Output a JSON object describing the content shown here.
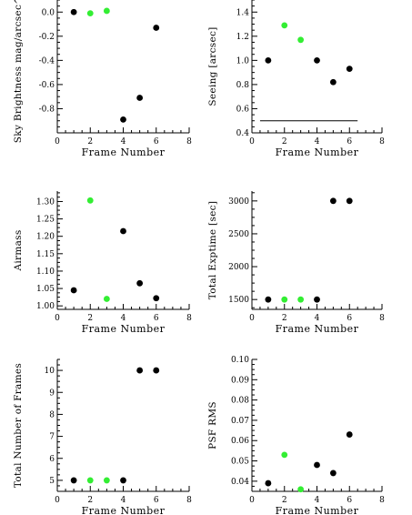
{
  "colors": {
    "black_point": "#000000",
    "green_point": "#33ee33",
    "axis": "#000000"
  },
  "chart_data": [
    {
      "type": "scatter",
      "title": "",
      "xlabel": "Frame Number",
      "ylabel": "Sky Brightness mag/arcsec^2",
      "xlim": [
        0,
        8
      ],
      "ylim": [
        -1.0,
        0.1
      ],
      "xticks": [
        "0",
        "2",
        "4",
        "6",
        "8"
      ],
      "yticks": [
        "0.0",
        "-0.2",
        "-0.4",
        "-0.6",
        "-0.8"
      ],
      "grid": false,
      "points": [
        {
          "x": 1,
          "y": 0.0,
          "color": "black"
        },
        {
          "x": 2,
          "y": -0.01,
          "color": "green"
        },
        {
          "x": 3,
          "y": 0.01,
          "color": "green"
        },
        {
          "x": 4,
          "y": -0.89,
          "color": "black"
        },
        {
          "x": 5,
          "y": -0.71,
          "color": "black"
        },
        {
          "x": 6,
          "y": -0.13,
          "color": "black"
        }
      ]
    },
    {
      "type": "scatter",
      "title": "",
      "xlabel": "Frame Number",
      "ylabel": "Seeing [arcsec]",
      "xlim": [
        0,
        8
      ],
      "ylim": [
        0.4,
        1.5
      ],
      "xticks": [
        "0",
        "2",
        "4",
        "6",
        "8"
      ],
      "yticks": [
        "0.4",
        "0.6",
        "0.8",
        "1.0",
        "1.2",
        "1.4"
      ],
      "grid": false,
      "reference_line": {
        "y": 0.5,
        "x_start": 0.5,
        "x_end": 6.5
      },
      "points": [
        {
          "x": 1,
          "y": 1.0,
          "color": "black"
        },
        {
          "x": 2,
          "y": 1.29,
          "color": "green"
        },
        {
          "x": 3,
          "y": 1.17,
          "color": "green"
        },
        {
          "x": 4,
          "y": 1.0,
          "color": "black"
        },
        {
          "x": 5,
          "y": 0.82,
          "color": "black"
        },
        {
          "x": 6,
          "y": 0.93,
          "color": "black"
        }
      ]
    },
    {
      "type": "scatter",
      "title": "",
      "xlabel": "Frame Number",
      "ylabel": "Airmass",
      "xlim": [
        0,
        8
      ],
      "ylim": [
        0.99,
        1.33
      ],
      "xticks": [
        "0",
        "2",
        "4",
        "6",
        "8"
      ],
      "yticks": [
        "1.00",
        "1.05",
        "1.10",
        "1.15",
        "1.20",
        "1.25",
        "1.30"
      ],
      "grid": false,
      "points": [
        {
          "x": 1,
          "y": 1.045,
          "color": "black"
        },
        {
          "x": 2,
          "y": 1.303,
          "color": "green"
        },
        {
          "x": 3,
          "y": 1.02,
          "color": "green"
        },
        {
          "x": 4,
          "y": 1.215,
          "color": "black"
        },
        {
          "x": 5,
          "y": 1.065,
          "color": "black"
        },
        {
          "x": 6,
          "y": 1.022,
          "color": "black"
        }
      ]
    },
    {
      "type": "scatter",
      "title": "",
      "xlabel": "Frame Number",
      "ylabel": "Total Exptime [sec]",
      "xlim": [
        0,
        8
      ],
      "ylim": [
        1350,
        3150
      ],
      "xticks": [
        "0",
        "2",
        "4",
        "6",
        "8"
      ],
      "yticks": [
        "1500",
        "2000",
        "2500",
        "3000"
      ],
      "grid": false,
      "points": [
        {
          "x": 1,
          "y": 1500,
          "color": "black"
        },
        {
          "x": 2,
          "y": 1500,
          "color": "green"
        },
        {
          "x": 3,
          "y": 1500,
          "color": "green"
        },
        {
          "x": 4,
          "y": 1500,
          "color": "black"
        },
        {
          "x": 5,
          "y": 3000,
          "color": "black"
        },
        {
          "x": 6,
          "y": 3000,
          "color": "black"
        }
      ]
    },
    {
      "type": "scatter",
      "title": "",
      "xlabel": "Frame Number",
      "ylabel": "Total Number of Frames",
      "xlim": [
        0,
        8
      ],
      "ylim": [
        4.5,
        10.5
      ],
      "xticks": [
        "0",
        "2",
        "4",
        "6",
        "8"
      ],
      "yticks": [
        "5",
        "6",
        "7",
        "8",
        "9",
        "10"
      ],
      "grid": false,
      "points": [
        {
          "x": 1,
          "y": 5,
          "color": "black"
        },
        {
          "x": 2,
          "y": 5,
          "color": "green"
        },
        {
          "x": 3,
          "y": 5,
          "color": "green"
        },
        {
          "x": 4,
          "y": 5,
          "color": "black"
        },
        {
          "x": 5,
          "y": 10,
          "color": "black"
        },
        {
          "x": 6,
          "y": 10,
          "color": "black"
        }
      ]
    },
    {
      "type": "scatter",
      "title": "",
      "xlabel": "Frame Number",
      "ylabel": "PSF RMS",
      "xlim": [
        0,
        8
      ],
      "ylim": [
        0.035,
        0.1
      ],
      "xticks": [
        "0",
        "2",
        "4",
        "6",
        "8"
      ],
      "yticks": [
        "0.04",
        "0.05",
        "0.06",
        "0.07",
        "0.08",
        "0.09",
        "0.10"
      ],
      "grid": false,
      "points": [
        {
          "x": 1,
          "y": 0.039,
          "color": "black"
        },
        {
          "x": 2,
          "y": 0.053,
          "color": "green"
        },
        {
          "x": 3,
          "y": 0.036,
          "color": "green"
        },
        {
          "x": 4,
          "y": 0.048,
          "color": "black"
        },
        {
          "x": 5,
          "y": 0.044,
          "color": "black"
        },
        {
          "x": 6,
          "y": 0.063,
          "color": "black"
        }
      ]
    }
  ]
}
